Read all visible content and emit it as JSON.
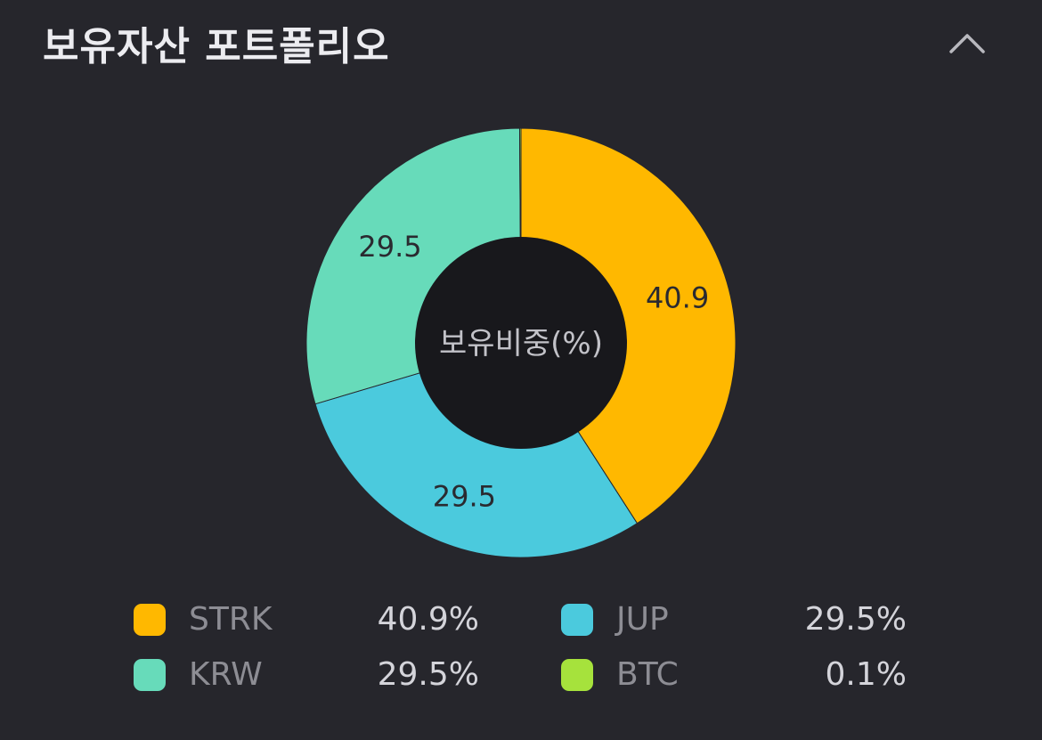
{
  "header": {
    "title": "보유자산 포트폴리오",
    "collapse_icon": "chevron-up-icon"
  },
  "chart_data": {
    "type": "pie",
    "donut": true,
    "center_label": "보유비중(%)",
    "categories": [
      "STRK",
      "JUP",
      "KRW",
      "BTC"
    ],
    "values": [
      40.9,
      29.5,
      29.5,
      0.1
    ],
    "colors": [
      "#FFB800",
      "#4BCADD",
      "#67DBBA",
      "#A6E23C"
    ],
    "slice_labels": [
      "40.9",
      "29.5",
      "29.5",
      ""
    ],
    "legend_position": "bottom"
  },
  "legend": [
    {
      "name": "STRK",
      "value": "40.9%",
      "color": "#FFB800"
    },
    {
      "name": "JUP",
      "value": "29.5%",
      "color": "#4BCADD"
    },
    {
      "name": "KRW",
      "value": "29.5%",
      "color": "#67DBBA"
    },
    {
      "name": "BTC",
      "value": "0.1%",
      "color": "#A6E23C"
    }
  ],
  "colors": {
    "background": "#26262c",
    "donut_hole": "#18181c"
  }
}
